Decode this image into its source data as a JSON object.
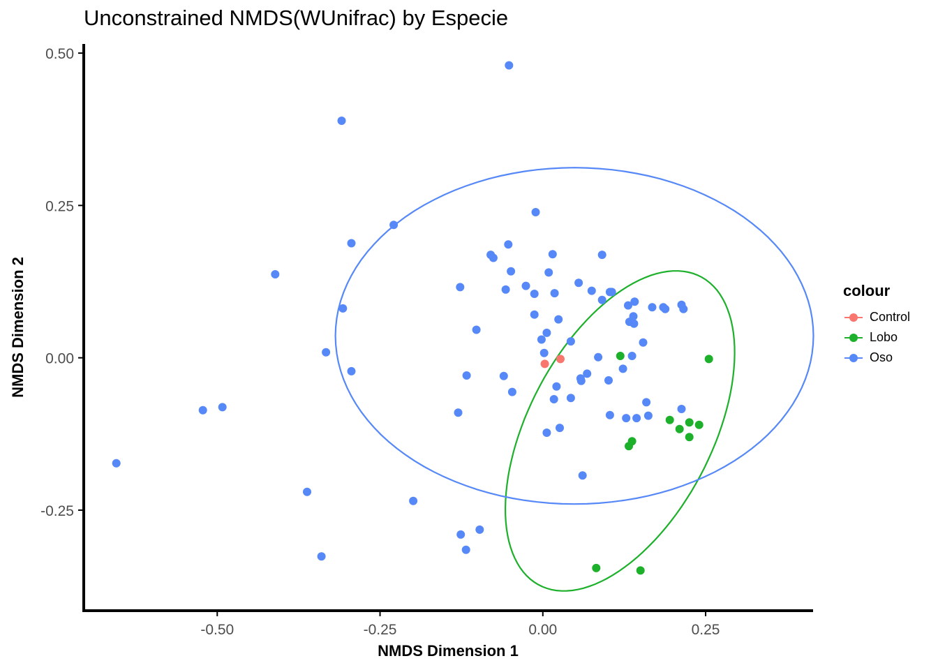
{
  "chart_data": {
    "type": "scatter",
    "title": "Unconstrained NMDS(WUnifrac) by Especie",
    "xlabel": "NMDS Dimension 1",
    "ylabel": "NMDS Dimension 2",
    "xlim": [
      -0.705,
      0.415
    ],
    "ylim": [
      -0.415,
      0.515
    ],
    "xticks": [
      -0.5,
      -0.25,
      0.0,
      0.25
    ],
    "xtick_labels": [
      "-0.50",
      "-0.25",
      "0.00",
      "0.25"
    ],
    "yticks": [
      -0.25,
      0.0,
      0.25,
      0.5
    ],
    "ytick_labels": [
      "-0.25",
      "0.00",
      "0.25",
      "0.50"
    ],
    "grid": false,
    "legend": {
      "title": "colour",
      "placement": "right"
    },
    "series": [
      {
        "name": "Control",
        "color": "#F8766D",
        "points": [
          [
            0.003,
            -0.01
          ],
          [
            0.027,
            -0.002
          ]
        ]
      },
      {
        "name": "Lobo",
        "color": "#1DB02B",
        "points": [
          [
            0.119,
            0.003
          ],
          [
            0.255,
            -0.002
          ],
          [
            0.195,
            -0.102
          ],
          [
            0.21,
            -0.117
          ],
          [
            0.225,
            -0.106
          ],
          [
            0.24,
            -0.11
          ],
          [
            0.225,
            -0.13
          ],
          [
            0.137,
            -0.137
          ],
          [
            0.132,
            -0.145
          ],
          [
            0.082,
            -0.345
          ],
          [
            0.15,
            -0.349
          ]
        ],
        "ellipse": {
          "cx": 0.1185,
          "cy": -0.12,
          "rx": 0.282,
          "ry": 0.143,
          "angle_deg": 65
        }
      },
      {
        "name": "Oso",
        "color": "#5688F7",
        "points": [
          [
            -0.655,
            -0.173
          ],
          [
            -0.522,
            -0.086
          ],
          [
            -0.492,
            -0.081
          ],
          [
            -0.411,
            0.137
          ],
          [
            -0.362,
            -0.22
          ],
          [
            -0.34,
            -0.326
          ],
          [
            -0.333,
            0.009
          ],
          [
            -0.307,
            0.081
          ],
          [
            -0.309,
            0.389
          ],
          [
            -0.294,
            0.188
          ],
          [
            -0.294,
            -0.022
          ],
          [
            -0.229,
            0.218
          ],
          [
            -0.199,
            -0.235
          ],
          [
            -0.13,
            -0.09
          ],
          [
            -0.127,
            0.116
          ],
          [
            -0.126,
            -0.29
          ],
          [
            -0.117,
            -0.029
          ],
          [
            -0.118,
            -0.315
          ],
          [
            -0.102,
            0.046
          ],
          [
            -0.097,
            -0.282
          ],
          [
            -0.08,
            0.169
          ],
          [
            -0.076,
            0.164
          ],
          [
            -0.06,
            -0.03
          ],
          [
            -0.057,
            0.112
          ],
          [
            -0.053,
            0.186
          ],
          [
            -0.049,
            0.142
          ],
          [
            -0.047,
            -0.056
          ],
          [
            -0.052,
            0.48
          ],
          [
            -0.026,
            0.118
          ],
          [
            -0.013,
            0.105
          ],
          [
            -0.013,
            0.071
          ],
          [
            -0.011,
            0.239
          ],
          [
            -0.002,
            0.03
          ],
          [
            0.002,
            0.008
          ],
          [
            0.006,
            0.041
          ],
          [
            0.009,
            0.14
          ],
          [
            0.015,
            0.17
          ],
          [
            0.018,
            0.106
          ],
          [
            0.017,
            -0.068
          ],
          [
            0.021,
            -0.047
          ],
          [
            0.024,
            0.063
          ],
          [
            0.026,
            -0.115
          ],
          [
            0.006,
            -0.123
          ],
          [
            0.043,
            0.027
          ],
          [
            0.043,
            -0.066
          ],
          [
            0.055,
            0.123
          ],
          [
            0.059,
            -0.038
          ],
          [
            0.058,
            -0.034
          ],
          [
            0.068,
            -0.026
          ],
          [
            0.075,
            0.11
          ],
          [
            0.085,
            0.001
          ],
          [
            0.091,
            0.169
          ],
          [
            0.091,
            0.095
          ],
          [
            0.103,
            0.108
          ],
          [
            0.106,
            0.108
          ],
          [
            0.101,
            -0.037
          ],
          [
            0.103,
            -0.094
          ],
          [
            0.123,
            -0.018
          ],
          [
            0.131,
            0.086
          ],
          [
            0.128,
            -0.099
          ],
          [
            0.133,
            0.059
          ],
          [
            0.137,
            0.003
          ],
          [
            0.139,
            0.068
          ],
          [
            0.141,
            0.092
          ],
          [
            0.144,
            -0.099
          ],
          [
            0.154,
            0.025
          ],
          [
            0.159,
            -0.073
          ],
          [
            0.162,
            -0.095
          ],
          [
            0.168,
            0.083
          ],
          [
            0.185,
            0.083
          ],
          [
            0.188,
            0.08
          ],
          [
            0.14,
            0.056
          ],
          [
            0.213,
            0.087
          ],
          [
            0.216,
            0.08
          ],
          [
            0.213,
            -0.084
          ],
          [
            0.061,
            -0.193
          ]
        ],
        "ellipse": {
          "cx": 0.0485,
          "cy": 0.036,
          "rx": 0.367,
          "ry": 0.276,
          "angle_deg": 0
        }
      }
    ]
  }
}
